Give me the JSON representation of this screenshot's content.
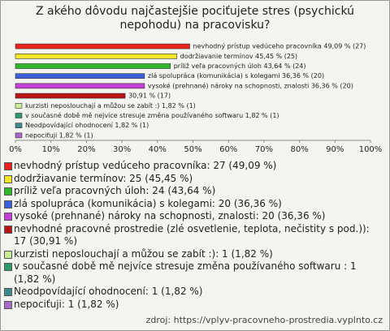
{
  "chart_data": {
    "type": "bar",
    "orientation": "horizontal",
    "title": "Z akého dôvodu najčastejšie pociťujete stres (psychickú nepohodu) na pracovisku?",
    "categories": [
      "nevhodný prístup vedúceho pracovníka: 27 (49,09 %)",
      "dodržiavanie termínov: 25 (45,45 %)",
      "príliž veľa pracovných úloh: 24 (43,64 %)",
      "zlá spolupráca (komunikácia) s kolegami: 20 (36,36 %)",
      "vysoké (prehnané) nároky na schopnosti, znalosti: 20 (36,36 %)",
      "nevhodné pracovné prostredie (zlé osvetlenie, teplota, nečistity s pod.)): 17 (30,91 %)",
      "kurzisti neposlouchají a můžou se zabít :): 1 (1,82 %)",
      "v současné době mě nejvíce stresuje změna používaného softwaru : 1 (1,82 %)",
      "Neodpovídající ohodnocení: 1 (1,82 %)",
      "nepociťuji: 1 (1,82 %)"
    ],
    "values": [
      49.09,
      45.45,
      43.64,
      36.36,
      36.36,
      30.91,
      1.82,
      1.82,
      1.82,
      1.82
    ],
    "value_labels": [
      "nevhodný prístup vedúceho pracovníka 49,09 % (27)",
      "dodržiavanie termínov 45,45 % (25)",
      "príliž veľa pracovných úloh 43,64 % (24)",
      "zlá spolupráca (komunikácia) s kolegami 36,36 % (20)",
      "vysoké (prehnané) nároky na schopnosti, znalosti 36,36 % (20)",
      "30,91 % (17)",
      "kurzisti neposlouchají a můžou se zabít :) 1,82 % (1)",
      "v současné době mě nejvíce stresuje změna používaného softwaru  1,82 % (1)",
      "Neodpovídající ohodnocení 1,82 % (1)",
      "nepociťuji 1,82 % (1)"
    ],
    "colors": [
      "#e8231e",
      "#f5e62a",
      "#2fb82c",
      "#3a5fd8",
      "#c43ed8",
      "#b81414",
      "#c8ee9a",
      "#2e9a6a",
      "#3c8a8a",
      "#a86ac8"
    ],
    "xlim": [
      0,
      100
    ],
    "xticks": [
      {
        "value": 0,
        "label": "0%"
      },
      {
        "value": 10,
        "label": "10%"
      },
      {
        "value": 20,
        "label": "20%"
      },
      {
        "value": 30,
        "label": "30%"
      },
      {
        "value": 40,
        "label": "40%"
      },
      {
        "value": 50,
        "label": "50%"
      },
      {
        "value": 60,
        "label": "60%"
      },
      {
        "value": 70,
        "label": "70%"
      },
      {
        "value": 80,
        "label": "80%"
      },
      {
        "value": 90,
        "label": "90%"
      },
      {
        "value": 100,
        "label": "100%"
      }
    ],
    "source": "zdroj: https://vplyv-pracovneho-prostredia.vyplnto.cz"
  }
}
